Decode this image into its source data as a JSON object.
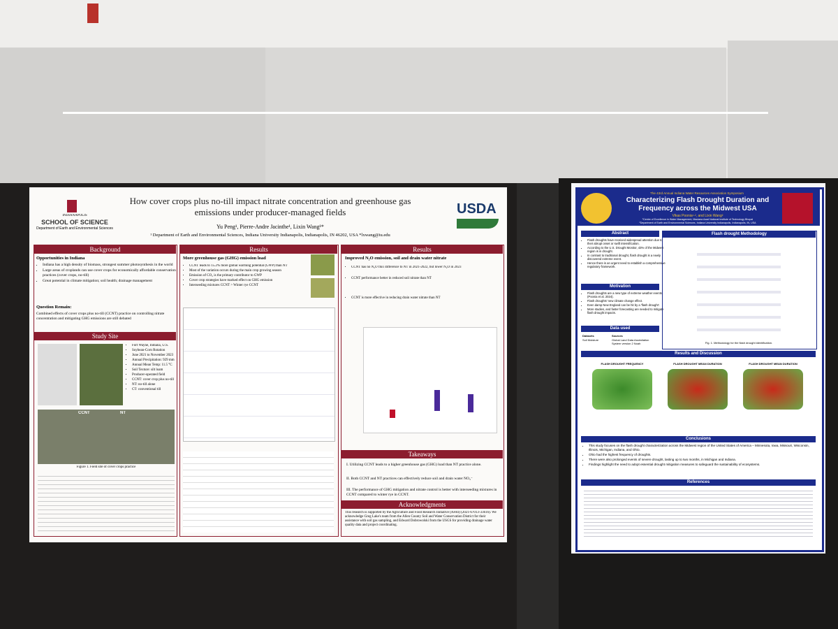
{
  "left_poster": {
    "institution": "INDIANAPOLIS",
    "school": "SCHOOL OF SCIENCE",
    "department": "Department of Earth and Environmental Sciences",
    "title": "How cover crops plus no-till impact nitrate concentration and greenhouse gas emissions under producer-managed fields",
    "authors": "Yu Peng¹, Pierre-Andre Jacinthe¹, Lixin Wang¹*",
    "affiliation": "¹ Department of Earth and Environmental Sciences, Indiana University Indianapolis, Indianapolis, IN 46202, USA *lxwang@iu.edu",
    "logo": "USDA",
    "background": {
      "heading": "Background",
      "subheading": "Opportunities in Indiana",
      "bullets": [
        "Indiana has a high density of biomass, strongest summer photosynthesis in the world",
        "Large areas of croplands can use cover crops for economically affordable conservation practices (cover crops, no-till)",
        "Great potential in climate mitigation; soil health; drainage management"
      ],
      "question_heading": "Question Remain:",
      "question": "Combined effects of cover crops plus no-till (CCNT) practice on controlling nitrate concentration and mitigating GHG emissions are still debated"
    },
    "study_site": {
      "heading": "Study Site",
      "bullets": [
        "Fort Wayne, Indiana, U.S.",
        "Soybean-Corn Rotation",
        "June 2021 to November 2023",
        "Annual Precipitation: 929 mm",
        "Annual Mean Temp: 11.5 °C",
        "Soil Texture: silt loam",
        "Producer-operated field",
        "CCNT: cover crop plus no-till",
        "NT: no-till alone",
        "CT: conventional till"
      ],
      "photo_labels": [
        "CCNT",
        "NT"
      ],
      "caption": "Figure 1. Field site of cover crops practice"
    },
    "results_ghg": {
      "heading": "Results",
      "subheading": "More greenhouse gas (GHG) emission load",
      "bullets": [
        "CCNT leads to 15.2% more global warming potential (GWP) than NT",
        "Most of the variation occurs during the main crop growing season",
        "Emission of CO₂ is the primary contributor to GWP",
        "Cover crop strategies have marked effect on GHG emission",
        "Interseeding mixtures CCNT > Winter rye CCNT"
      ]
    },
    "results_nitrate": {
      "heading": "Results",
      "subheading": "Improved N₂O emission, soil and drain water nitrate",
      "bullets": [
        "CCNT has no N₂O flux difference to NT in 2021-2022, but lower N₂O in 2023",
        "CCNT performance better in reduced soil nitrate than NT",
        "CCNT is more effective in reducing drain water nitrate than NT"
      ]
    },
    "takeaways": {
      "heading": "Takeaways",
      "items": [
        "I. Utilizing CCNT leads to a higher greenhouse gas (GHG) load than NT practice alone.",
        "II. Both CCNT and NT practices can effectively reduce soil and drain water NO₃⁻",
        "III. The performance of GHG mitigation and nitrate control is better with interseeding mixtures in CCNT compared to winter rye in CCNT."
      ]
    },
    "acknowledgments": {
      "heading": "Acknowledgments",
      "text": "This research is supported by the Agriculture and Food Research Initiative (AFRI) (2021-67013-33616). We acknowledge Greg Lake's team from the Allen County Soil and Water Conservation District for their assistance with soil gas sampling, and Edward Dobrowolski from the USGS for providing drainage water quality data and project coordinating."
    }
  },
  "right_poster": {
    "symposium": "The 43rd Annual Indiana Water Resources Association Symposium",
    "title": "Characterizing Flash Drought Duration and Frequency across the Midwest USA",
    "authors": "Vikas Poonia¹·², and Lixin Wang²",
    "affiliations": [
      "¹Centre of Excellence in Water Management, Maulana Azad National Institute of Technology Bhopal",
      "²Department of Earth and Environmental Sciences, Indiana University Indianapolis, Indianapolis, IN, USA"
    ],
    "abstract": {
      "heading": "Abstract",
      "bullets": [
        "Flash droughts have received widespread attention due to their abrupt onset or swift intensification.",
        "According to the U.S. Drought Monitor, 43% of the Midwest region is in drought.",
        "In contrast to traditional drought, flash drought is a newly discovered extreme event.",
        "Hence there is an urgent need to establish a comprehensive regulatory framework."
      ]
    },
    "methodology": {
      "heading": "Flash drought Methodology",
      "caption": "Fig. 1. Methodology for the flash drought identification."
    },
    "motivation": {
      "heading": "Motivation",
      "bullets": [
        "Flash droughts are a new type of extreme weather events (Poonia et al. 2024).",
        "Flash droughts' new climate change effect.",
        "Even damp New England can be hit by a 'flash drought'.",
        "More studies, and faster forecasting are needed to mitigate flash drought impacts."
      ]
    },
    "data_used": {
      "heading": "Data used",
      "columns": [
        "Datasets",
        "Sources"
      ],
      "row": [
        "Soil Moisture",
        "Global Land Data Assimilation System version 2 Noah"
      ]
    },
    "results": {
      "heading": "Results and Discussion",
      "map_titles": [
        "FLASH DROUGHT FREQUENCY",
        "FLASH DROUGHT MEAN DURATION",
        "FLASH DROUGHT MEAN DURATION"
      ]
    },
    "conclusions": {
      "heading": "Conclusions",
      "bullets": [
        "This study focuses on the flash drought characterization across the Midwest region of the United States of America – Minnesota, Iowa, Missouri, Wisconsin, Illinois, Michigan, Indiana, and Ohio.",
        "Ohio had the highest frequency of droughts.",
        "There were also prolonged events of severe drought, lasting up to two months, in Michigan and Indiana.",
        "Findings highlight the need to adopt essential drought mitigation measures to safeguard the sustainability of ecosystems."
      ]
    },
    "references": {
      "heading": "References"
    }
  }
}
